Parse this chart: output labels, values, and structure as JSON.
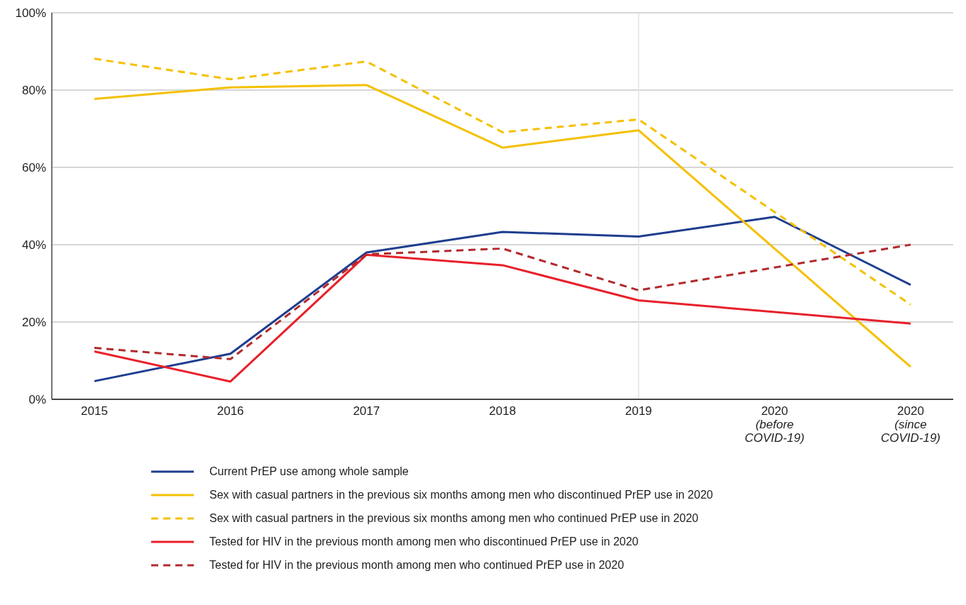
{
  "chart_data": {
    "type": "line",
    "categories": [
      "2015",
      "2016",
      "2017",
      "2018",
      "2019",
      "2020\n(before\nCOVID-19)",
      "2020\n(since\nCOVID-19)"
    ],
    "series": [
      {
        "name": "Current PrEP use among whole sample",
        "color": "#1f3d8f",
        "line_style": "solid",
        "values": [
          4.7,
          11.8,
          38,
          43.3,
          42.1,
          47.2,
          29.6
        ]
      },
      {
        "name": "Sex with casual partners in the previous six months among men who discontinued PrEP use in 2020",
        "color": "#f5c000",
        "line_style": "solid",
        "values": [
          77.7,
          80.7,
          81.3,
          65.1,
          69.6,
          null,
          8.4
        ]
      },
      {
        "name": "Sex with casual partners in the previous six months among men who continued PrEP use in 2020",
        "color": "#f5c000",
        "line_style": "dashed",
        "values": [
          88.1,
          82.8,
          87.4,
          69.1,
          72.4,
          null,
          24.5
        ]
      },
      {
        "name": "Tested for HIV in the previous month among men who discontinued PrEP use in 2020",
        "color": "#e8202a",
        "line_style": "solid",
        "values": [
          12.4,
          4.6,
          37.4,
          34.7,
          25.6,
          null,
          19.6
        ]
      },
      {
        "name": "Tested for HIV in the previous month among men who continued PrEP use in 2020",
        "color": "#b22a2e",
        "line_style": "dashed",
        "values": [
          13.3,
          10.4,
          37.5,
          39,
          28.2,
          null,
          40
        ]
      }
    ],
    "ylim": [
      0,
      100
    ],
    "yticks": [
      {
        "value": 0,
        "label": "0%"
      },
      {
        "value": 20,
        "label": "20%"
      },
      {
        "value": 40,
        "label": "40%"
      },
      {
        "value": 60,
        "label": "60%"
      },
      {
        "value": 80,
        "label": "80%"
      },
      {
        "value": 100,
        "label": "100%"
      }
    ],
    "grid": "y",
    "ref_lines": [
      {
        "axis": "x",
        "value": "2019",
        "color": "#e3e3e3"
      }
    ],
    "legend": "bottom",
    "marker": "none"
  }
}
